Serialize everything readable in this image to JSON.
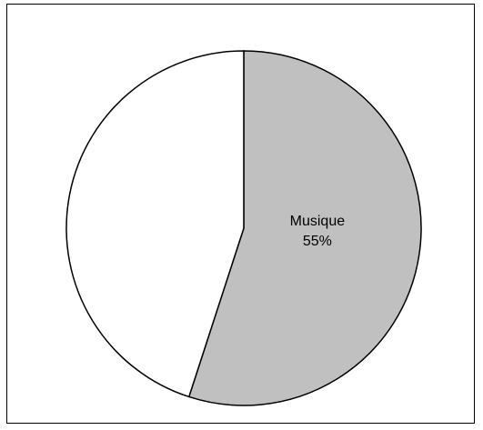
{
  "chart_data": {
    "type": "pie",
    "slices": [
      {
        "label": "Musique",
        "value": 55,
        "percent_label": "55%",
        "color": "#c0c0c0",
        "show_label": true
      },
      {
        "label": "",
        "value": 45,
        "percent_label": "",
        "color": "#ffffff",
        "show_label": false
      }
    ],
    "start_angle_deg": 0,
    "direction": "clockwise",
    "legend": "none"
  }
}
